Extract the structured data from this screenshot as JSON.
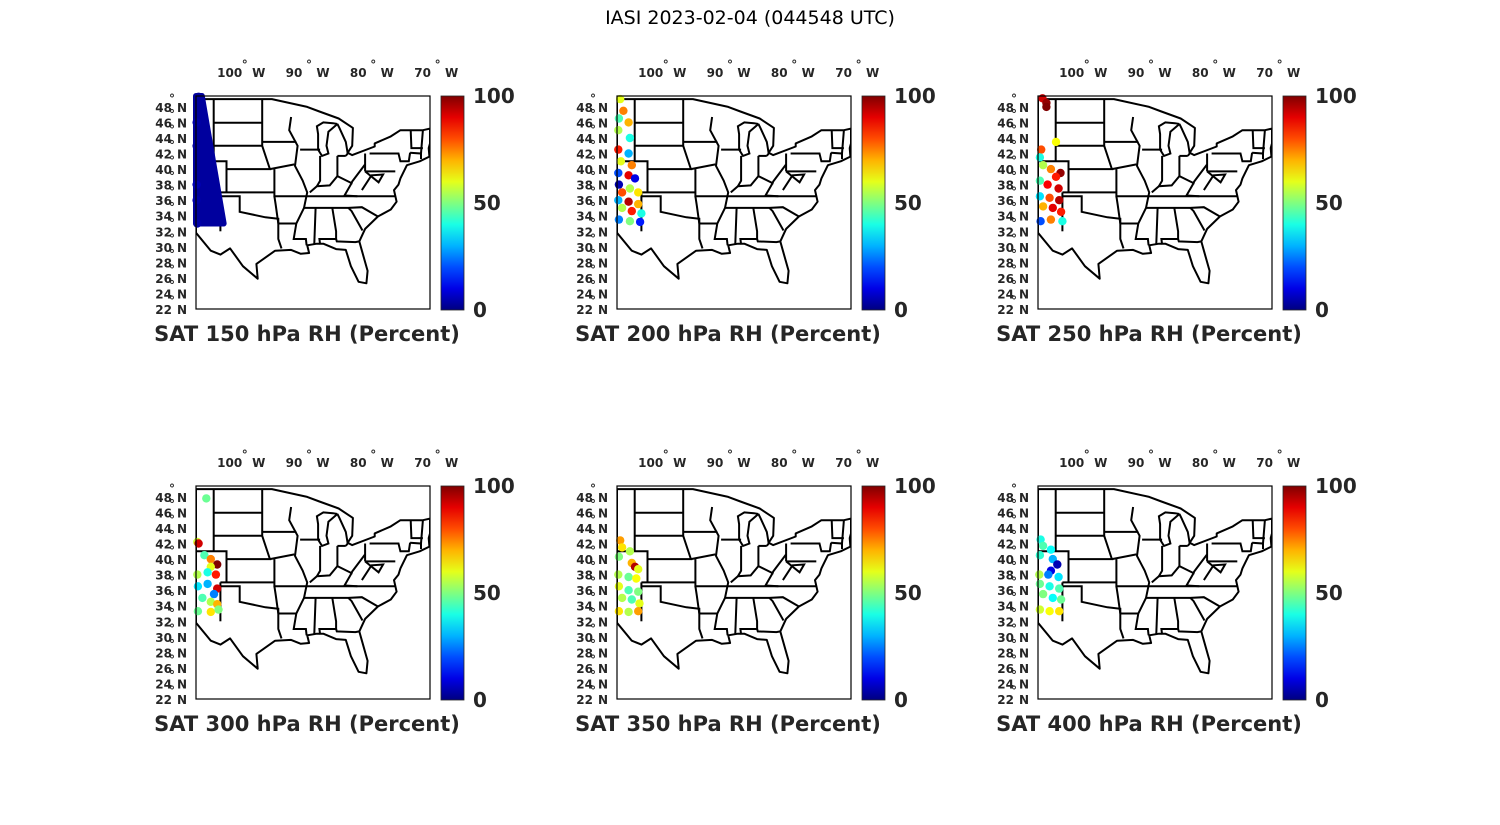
{
  "title": "IASI 2023-02-04 (044548 UTC)",
  "chart_data": {
    "type": "scatter",
    "map_extent": {
      "lon": [
        -106.8,
        -70.4
      ],
      "lat": [
        22,
        49.4
      ]
    },
    "lon_ticks": [
      {
        "value": -100,
        "label": "100",
        "hemi": "W"
      },
      {
        "value": -90,
        "label": "90",
        "hemi": "W"
      },
      {
        "value": -80,
        "label": "80",
        "hemi": "W"
      },
      {
        "value": -70,
        "label": "70",
        "hemi": "W"
      }
    ],
    "lat_ticks": [
      48,
      46,
      44,
      42,
      40,
      38,
      36,
      34,
      32,
      30,
      28,
      26,
      24,
      22
    ],
    "lat_hemi": "N",
    "degree_symbol": "°",
    "colorbar": {
      "range": [
        0,
        100
      ],
      "ticks": [
        "0",
        "50",
        "100"
      ],
      "colormap": "jet"
    },
    "panels": [
      {
        "title": "SAT 150 hPa RH (Percent)",
        "swath": {
          "lon": [
            -106.8,
            -102.5
          ],
          "lat": [
            33,
            49.4
          ],
          "value": 3
        },
        "points": [
          [
            -106.4,
            49.3,
            3
          ],
          [
            -106.7,
            46,
            4
          ],
          [
            -106.7,
            43,
            3
          ],
          [
            -106.7,
            38,
            5
          ],
          [
            -106.7,
            36,
            4
          ],
          [
            -106.6,
            33,
            4
          ],
          [
            -103,
            34,
            3
          ]
        ]
      },
      {
        "title": "SAT 200 hPa RH (Percent)",
        "swath": null,
        "points": [
          [
            -106.3,
            49,
            60
          ],
          [
            -105.8,
            47.5,
            75
          ],
          [
            -106.5,
            46.5,
            45
          ],
          [
            -105,
            46,
            70
          ],
          [
            -106.6,
            45,
            55
          ],
          [
            -104.8,
            44,
            40
          ],
          [
            -106.6,
            42.5,
            85
          ],
          [
            -105,
            42,
            30
          ],
          [
            -106.2,
            41,
            60
          ],
          [
            -104.5,
            40.5,
            75
          ],
          [
            -106.6,
            39.5,
            20
          ],
          [
            -105,
            39.2,
            90
          ],
          [
            -104,
            38.8,
            10
          ],
          [
            -106.5,
            38,
            5
          ],
          [
            -104.8,
            37.5,
            55
          ],
          [
            -106,
            37,
            80
          ],
          [
            -103.5,
            37,
            65
          ],
          [
            -106.6,
            36,
            30
          ],
          [
            -105,
            35.8,
            95
          ],
          [
            -103.5,
            35.5,
            70
          ],
          [
            -106,
            35,
            55
          ],
          [
            -104.5,
            34.6,
            85
          ],
          [
            -103,
            34.3,
            40
          ],
          [
            -106.5,
            33.5,
            25
          ],
          [
            -104.8,
            33.3,
            50
          ],
          [
            -103.2,
            33.2,
            15
          ]
        ]
      },
      {
        "title": "SAT 250 hPa RH (Percent)",
        "swath": null,
        "points": [
          [
            -106.1,
            49.1,
            92
          ],
          [
            -105.5,
            48.5,
            98
          ],
          [
            -105.5,
            48,
            100
          ],
          [
            -104,
            43.5,
            62
          ],
          [
            -106.3,
            42.5,
            80
          ],
          [
            -106.5,
            41.5,
            40
          ],
          [
            -106,
            40.5,
            55
          ],
          [
            -104.8,
            40,
            75
          ],
          [
            -103.3,
            39.5,
            98
          ],
          [
            -104,
            39,
            85
          ],
          [
            -106.5,
            38.5,
            45
          ],
          [
            -105.3,
            38,
            88
          ],
          [
            -103.6,
            37.5,
            92
          ],
          [
            -106.5,
            36.5,
            35
          ],
          [
            -105,
            36.3,
            80
          ],
          [
            -103.5,
            36,
            95
          ],
          [
            -106,
            35.2,
            70
          ],
          [
            -104.5,
            35,
            90
          ],
          [
            -103.2,
            34.5,
            85
          ],
          [
            -106.4,
            33.3,
            20
          ],
          [
            -104.8,
            33.5,
            75
          ],
          [
            -103,
            33.3,
            40
          ]
        ]
      },
      {
        "title": "SAT 300 hPa RH (Percent)",
        "swath": null,
        "points": [
          [
            -105.2,
            47.8,
            48
          ],
          [
            -106.6,
            42.2,
            58
          ],
          [
            -106.4,
            42,
            92
          ],
          [
            -105.5,
            40.5,
            45
          ],
          [
            -104.5,
            40,
            75
          ],
          [
            -103.5,
            39.3,
            100
          ],
          [
            -104.5,
            39,
            60
          ],
          [
            -106.6,
            38,
            55
          ],
          [
            -105,
            38.3,
            40
          ],
          [
            -103.7,
            38,
            85
          ],
          [
            -106.5,
            36.5,
            35
          ],
          [
            -105,
            36.8,
            30
          ],
          [
            -103.5,
            36.2,
            92
          ],
          [
            -104,
            35.5,
            25
          ],
          [
            -105.8,
            35,
            45
          ],
          [
            -104.5,
            34.5,
            55
          ],
          [
            -103.5,
            34.2,
            70
          ],
          [
            -106.5,
            33.3,
            48
          ],
          [
            -104.5,
            33.2,
            65
          ],
          [
            -103.3,
            33.5,
            50
          ]
        ]
      },
      {
        "title": "SAT 350 hPa RH (Percent)",
        "swath": null,
        "points": [
          [
            -106.3,
            42.4,
            72
          ],
          [
            -106,
            41.5,
            65
          ],
          [
            -104.8,
            41,
            55
          ],
          [
            -106.5,
            40.3,
            50
          ],
          [
            -104.5,
            39.5,
            70
          ],
          [
            -104,
            39,
            95
          ],
          [
            -103.5,
            38.7,
            60
          ],
          [
            -106.6,
            38,
            55
          ],
          [
            -105,
            37.7,
            48
          ],
          [
            -103.8,
            37.5,
            62
          ],
          [
            -106.5,
            36.5,
            60
          ],
          [
            -105,
            36,
            45
          ],
          [
            -103.5,
            35.8,
            50
          ],
          [
            -106,
            35,
            55
          ],
          [
            -104.5,
            34.8,
            45
          ],
          [
            -103.3,
            34.3,
            60
          ],
          [
            -106.5,
            33.3,
            65
          ],
          [
            -105,
            33.2,
            55
          ],
          [
            -103.5,
            33.3,
            72
          ]
        ]
      },
      {
        "title": "SAT 400 hPa RH (Percent)",
        "swath": null,
        "points": [
          [
            -106.4,
            42.5,
            40
          ],
          [
            -106,
            41.7,
            45
          ],
          [
            -104.8,
            41.2,
            38
          ],
          [
            -106.5,
            40.5,
            42
          ],
          [
            -104.5,
            40,
            30
          ],
          [
            -103.8,
            39.3,
            5
          ],
          [
            -104.8,
            38.5,
            10
          ],
          [
            -106.6,
            38,
            55
          ],
          [
            -105.2,
            38,
            25
          ],
          [
            -103.6,
            37.7,
            35
          ],
          [
            -106.5,
            36.8,
            48
          ],
          [
            -105,
            36.5,
            40
          ],
          [
            -103.5,
            36.2,
            45
          ],
          [
            -106,
            35.5,
            50
          ],
          [
            -104.5,
            35,
            38
          ],
          [
            -103.2,
            34.8,
            48
          ],
          [
            -106.5,
            33.5,
            58
          ],
          [
            -105,
            33.3,
            62
          ],
          [
            -103.5,
            33.3,
            65
          ]
        ]
      }
    ]
  }
}
